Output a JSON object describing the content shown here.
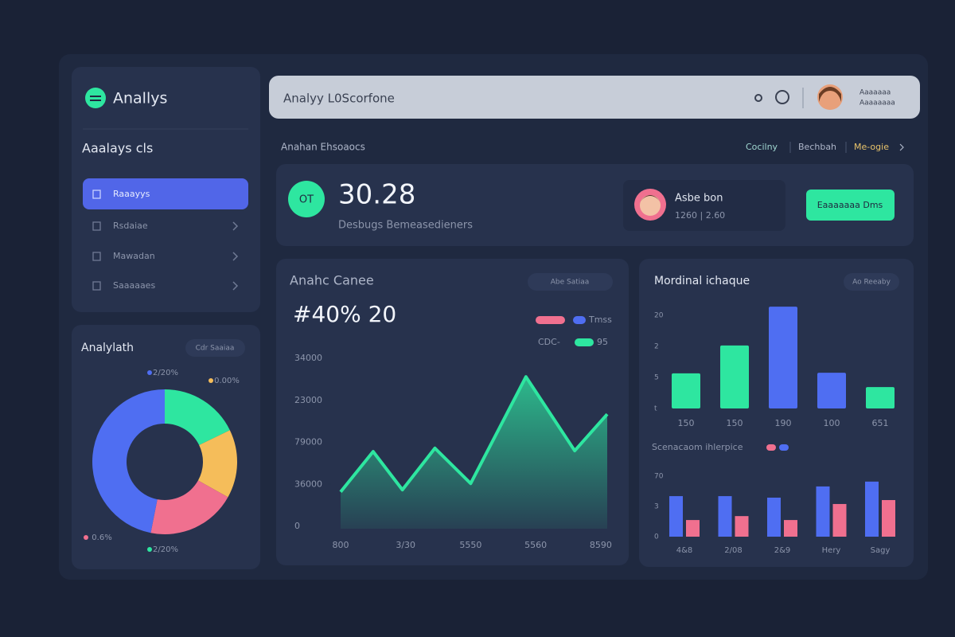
{
  "sidebar": {
    "logo": "Anallys",
    "section_title": "Aaalays cls",
    "nav": [
      "Raaayys",
      "Rsdaiae",
      "Mawadan",
      "Saaaaaes"
    ]
  },
  "topbar": {
    "search": "Analyy L0Scorfone",
    "user_line1": "Aaaaaaa",
    "user_line2": "Aaaaaaaa"
  },
  "breadcrumb": {
    "title": "Anahan Ehsoaocs",
    "links": [
      "Cocilny",
      "Bechbah",
      "Me-ogie"
    ]
  },
  "kpi": {
    "badge": "OT",
    "value": "30.28",
    "subtitle": "Desbugs Bemeasedieners",
    "profile_name": "Asbe bon",
    "profile_stats": "1260 | 2.60",
    "button": "Eaaaaaaa Dms"
  },
  "chart_data": [
    {
      "type": "area",
      "title": "Anahc Canee",
      "filter": "Abe Satiaa",
      "headline": "#40% 20",
      "legend_texts": [
        "Tmss",
        "CDC-",
        "95"
      ],
      "x": [
        0,
        0.5,
        0.95,
        1.45,
        2,
        2.85,
        3.6,
        4.1
      ],
      "series": [
        {
          "color": "#2ee6a0",
          "values": [
            8200,
            17800,
            8700,
            18600,
            10200,
            35600,
            18000,
            26700
          ]
        }
      ],
      "xlim": [
        0,
        4.1
      ],
      "xticks": [
        {
          "value": 0,
          "label": "800"
        },
        {
          "value": 1,
          "label": "3/30"
        },
        {
          "value": 2,
          "label": "5550"
        },
        {
          "value": 3,
          "label": "5560"
        },
        {
          "value": 4,
          "label": "8590"
        }
      ],
      "ylim": [
        0,
        40000
      ],
      "yticks": [
        {
          "value": 40000,
          "label": "34000"
        },
        {
          "value": 30000,
          "label": "23000"
        },
        {
          "value": 20000,
          "label": "79000"
        },
        {
          "value": 10000,
          "label": "36000"
        },
        0
      ]
    },
    {
      "type": "bar",
      "title": "Mordinal ichaque",
      "filter": "Ao Reeaby",
      "categories": [
        "150",
        "150",
        "190",
        "100",
        "651"
      ],
      "values": [
        1.13,
        2.03,
        3.28,
        1.15,
        0.69
      ],
      "colors": [
        "#2ee6a0",
        "#2ee6a0",
        "#4f6ef2",
        "#4f6ef2",
        "#2ee6a0"
      ],
      "ylim": [
        0,
        3.3
      ],
      "yticks": [
        {
          "value": 3,
          "label": "20"
        },
        {
          "value": 2,
          "label": "2"
        },
        {
          "value": 1,
          "label": "5"
        },
        {
          "value": 0,
          "label": "t"
        }
      ]
    },
    {
      "type": "grouped-bar",
      "title": "Scenacaom ihlerpice",
      "categories": [
        "4&8",
        "2/08",
        "2&9",
        "Hery",
        "Sagy"
      ],
      "series": [
        {
          "color": "#4f6ef2",
          "values": [
            13.4,
            13.4,
            12.9,
            16.6,
            18.2
          ]
        },
        {
          "color": "#f0708f",
          "values": [
            5.5,
            6.8,
            5.5,
            10.8,
            12.1
          ]
        }
      ],
      "ylim": [
        0,
        20
      ],
      "yticks": [
        {
          "value": 20,
          "label": "70"
        },
        {
          "value": 10,
          "label": "3"
        },
        0
      ]
    },
    {
      "type": "pie",
      "title": "Analylath",
      "filter": "Cdr Saaiaa",
      "donut": true,
      "values": [
        17.8,
        15.3,
        20,
        46.9
      ],
      "colors": [
        "#2ee6a0",
        "#f5bd5a",
        "#f0708f",
        "#4f6ef2"
      ],
      "callouts": [
        "2/20%",
        "0.00%",
        "0.6%",
        "2/20%"
      ]
    }
  ]
}
